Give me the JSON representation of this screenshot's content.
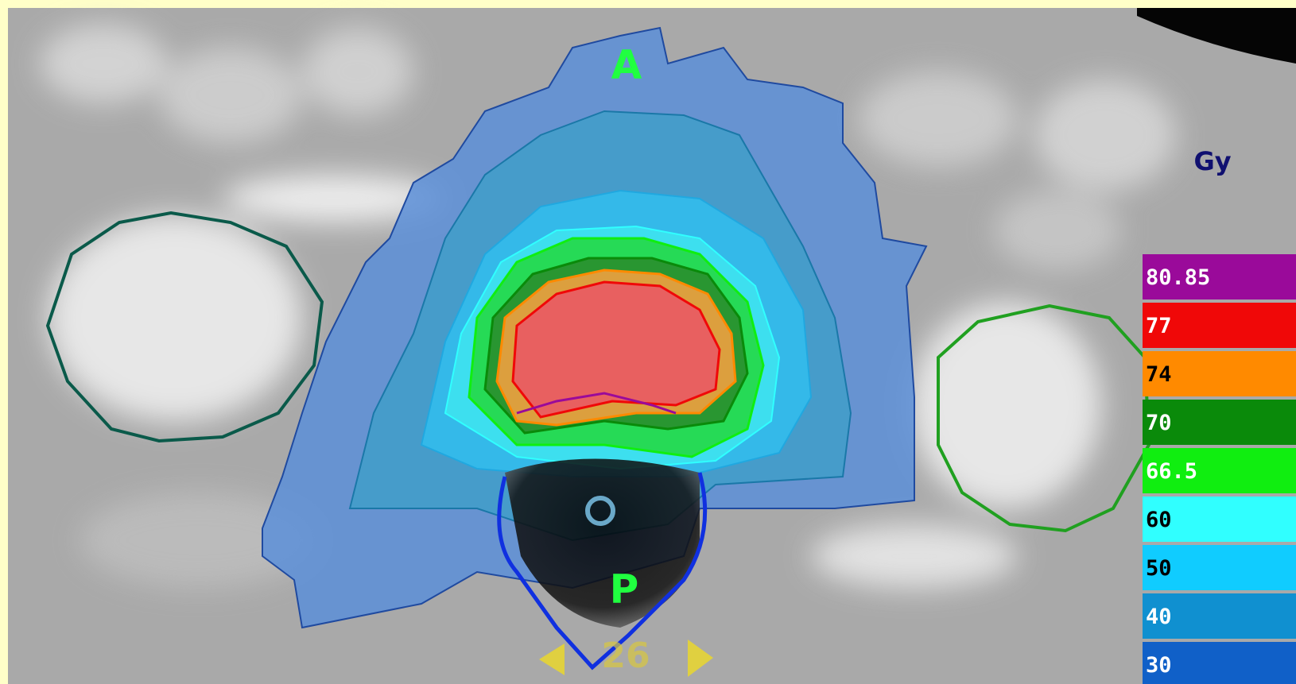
{
  "orientation": {
    "anterior": "A",
    "posterior": "P"
  },
  "slice": "26",
  "legend": {
    "unit": "Gy",
    "levels": [
      {
        "label": "80.85",
        "color": "#9a0a9a"
      },
      {
        "label": "77",
        "color": "#f00808"
      },
      {
        "label": "74",
        "color": "#ff8a00"
      },
      {
        "label": "70",
        "color": "#0a8a0a"
      },
      {
        "label": "66.5",
        "color": "#10ee10"
      },
      {
        "label": "60",
        "color": "#30ffff"
      },
      {
        "label": "50",
        "color": "#10ccff"
      },
      {
        "label": "40",
        "color": "#1090d0"
      },
      {
        "label": "30",
        "color": "#1060c8"
      }
    ]
  }
}
